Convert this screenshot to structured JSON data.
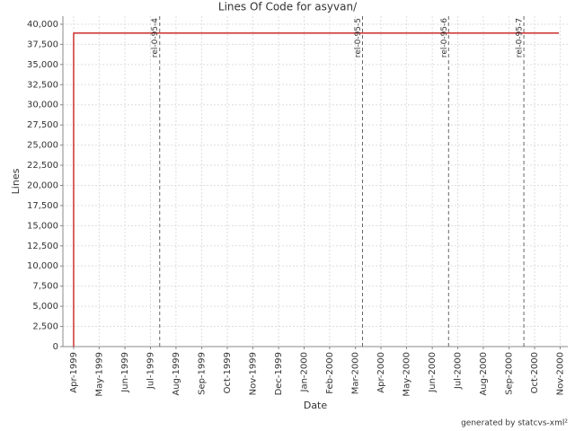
{
  "chart_data": {
    "type": "line",
    "title": "Lines Of Code for asyvan/",
    "xlabel": "Date",
    "ylabel": "Lines",
    "footer": "generated by statcvs-xml²",
    "x": [
      1999.25,
      1999.25,
      2000.829
    ],
    "values": [
      0,
      38900,
      38900
    ],
    "color": "#c00000",
    "xlim": [
      1999.215,
      2000.858
    ],
    "ylim": [
      0,
      41000
    ],
    "grid": true,
    "xticks": [
      {
        "value": 1999.25,
        "label": "Apr-1999"
      },
      {
        "value": 1999.333,
        "label": "May-1999"
      },
      {
        "value": 1999.417,
        "label": "Jun-1999"
      },
      {
        "value": 1999.5,
        "label": "Jul-1999"
      },
      {
        "value": 1999.583,
        "label": "Aug-1999"
      },
      {
        "value": 1999.667,
        "label": "Sep-1999"
      },
      {
        "value": 1999.75,
        "label": "Oct-1999"
      },
      {
        "value": 1999.833,
        "label": "Nov-1999"
      },
      {
        "value": 1999.917,
        "label": "Dec-1999"
      },
      {
        "value": 2000,
        "label": "Jan-2000"
      },
      {
        "value": 2000.083,
        "label": "Feb-2000"
      },
      {
        "value": 2000.167,
        "label": "Mar-2000"
      },
      {
        "value": 2000.25,
        "label": "Apr-2000"
      },
      {
        "value": 2000.333,
        "label": "May-2000"
      },
      {
        "value": 2000.417,
        "label": "Jun-2000"
      },
      {
        "value": 2000.5,
        "label": "Jul-2000"
      },
      {
        "value": 2000.583,
        "label": "Aug-2000"
      },
      {
        "value": 2000.667,
        "label": "Sep-2000"
      },
      {
        "value": 2000.75,
        "label": "Oct-2000"
      },
      {
        "value": 2000.833,
        "label": "Nov-2000"
      }
    ],
    "yticks": [
      0,
      {
        "value": 2500,
        "label": "2,500"
      },
      {
        "value": 5000,
        "label": "5,000"
      },
      {
        "value": 7500,
        "label": "7,500"
      },
      {
        "value": 10000,
        "label": "10,000"
      },
      {
        "value": 12500,
        "label": "12,500"
      },
      {
        "value": 15000,
        "label": "15,000"
      },
      {
        "value": 17500,
        "label": "17,500"
      },
      {
        "value": 20000,
        "label": "20,000"
      },
      {
        "value": 22500,
        "label": "22,500"
      },
      {
        "value": 25000,
        "label": "25,000"
      },
      {
        "value": 27500,
        "label": "27,500"
      },
      {
        "value": 30000,
        "label": "30,000"
      },
      {
        "value": 32500,
        "label": "32,500"
      },
      {
        "value": 35000,
        "label": "35,000"
      },
      {
        "value": 37500,
        "label": "37,500"
      },
      {
        "value": 40000,
        "label": "40,000"
      }
    ],
    "markers": [
      {
        "label": "rel-0-95-4",
        "x": 1999.53
      },
      {
        "label": "rel-0-95-5",
        "x": 2000.19
      },
      {
        "label": "rel-0-95-6",
        "x": 2000.47
      },
      {
        "label": "rel-0-95-7",
        "x": 2000.715
      }
    ]
  }
}
